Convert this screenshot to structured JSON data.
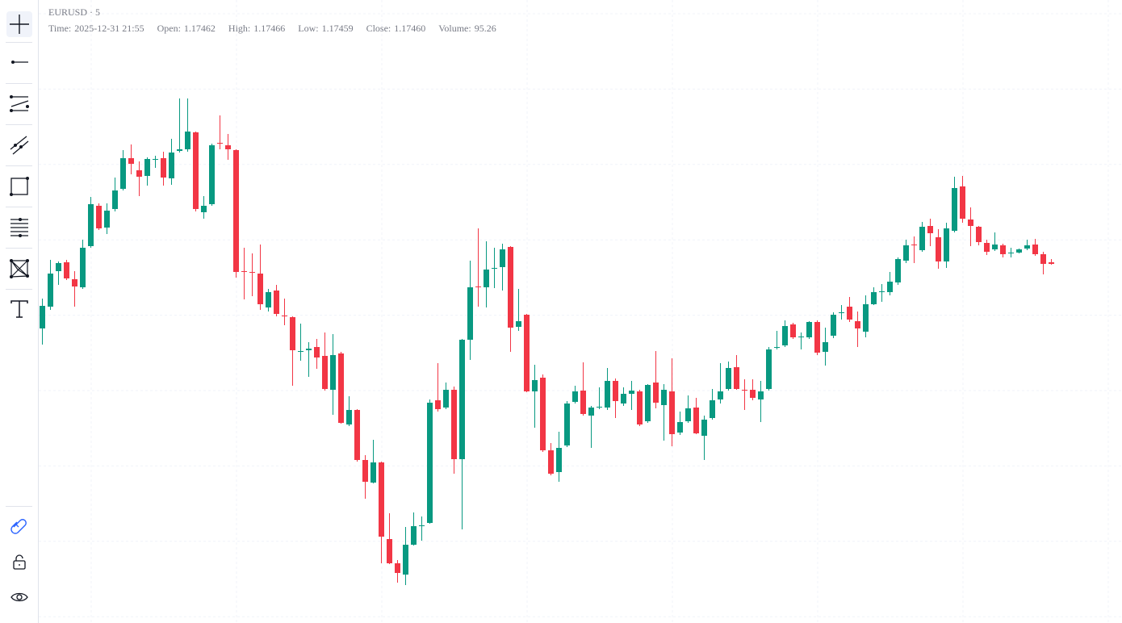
{
  "header": {
    "title": "EURUSD · 5",
    "legend": [
      {
        "label": "Time:",
        "value": "2025-12-31 21:55"
      },
      {
        "label": "Open:",
        "value": "1.17462"
      },
      {
        "label": "High:",
        "value": "1.17466"
      },
      {
        "label": "Low:",
        "value": "1.17459"
      },
      {
        "label": "Close:",
        "value": "1.17460"
      },
      {
        "label": "Volume:",
        "value": "95.26"
      }
    ]
  },
  "chart_data": {
    "type": "candlestick",
    "up_color": "#089981",
    "down_color": "#f23645",
    "grid": true,
    "ohlc": [
      [
        1.1738,
        1.17417,
        1.1736,
        1.17408
      ],
      [
        1.17407,
        1.17465,
        1.17403,
        1.17448
      ],
      [
        1.17451,
        1.17463,
        1.17434,
        1.17461
      ],
      [
        1.17462,
        1.17465,
        1.1744,
        1.17442
      ],
      [
        1.17441,
        1.17451,
        1.17407,
        1.17432
      ],
      [
        1.17431,
        1.1749,
        1.17429,
        1.1748
      ],
      [
        1.17482,
        1.17543,
        1.1748,
        1.17534
      ],
      [
        1.17532,
        1.17535,
        1.17502,
        1.17504
      ],
      [
        1.17505,
        1.17535,
        1.17497,
        1.17526
      ],
      [
        1.17528,
        1.17567,
        1.17525,
        1.17551
      ],
      [
        1.17553,
        1.17601,
        1.17551,
        1.17591
      ],
      [
        1.17591,
        1.17608,
        1.17571,
        1.17584
      ],
      [
        1.17576,
        1.17587,
        1.17544,
        1.17568
      ],
      [
        1.17569,
        1.17592,
        1.17557,
        1.1759
      ],
      [
        1.17589,
        1.17594,
        1.17579,
        1.1759
      ],
      [
        1.17591,
        1.17599,
        1.17557,
        1.17567
      ],
      [
        1.17566,
        1.17615,
        1.17558,
        1.17598
      ],
      [
        1.176,
        1.17665,
        1.17598,
        1.17602
      ],
      [
        1.17602,
        1.17665,
        1.17599,
        1.17624
      ],
      [
        1.17623,
        1.17624,
        1.17525,
        1.17528
      ],
      [
        1.17524,
        1.17544,
        1.17516,
        1.17532
      ],
      [
        1.17534,
        1.17609,
        1.17532,
        1.17607
      ],
      [
        1.1761,
        1.17644,
        1.17602,
        1.17609
      ],
      [
        1.17607,
        1.17621,
        1.17589,
        1.17602
      ],
      [
        1.17601,
        1.17602,
        1.17443,
        1.1745
      ],
      [
        1.17451,
        1.1748,
        1.17416,
        1.1745
      ],
      [
        1.1745,
        1.17473,
        1.1742,
        1.17449
      ],
      [
        1.17448,
        1.17484,
        1.17403,
        1.1741
      ],
      [
        1.17406,
        1.17429,
        1.17401,
        1.17425
      ],
      [
        1.17427,
        1.17434,
        1.17395,
        1.17398
      ],
      [
        1.17396,
        1.17417,
        1.17384,
        1.17395
      ],
      [
        1.17394,
        1.17395,
        1.17309,
        1.17353
      ],
      [
        1.17352,
        1.17386,
        1.1734,
        1.17352
      ],
      [
        1.17353,
        1.17363,
        1.1732,
        1.17355
      ],
      [
        1.17357,
        1.17367,
        1.1733,
        1.17344
      ],
      [
        1.17346,
        1.17375,
        1.17303,
        1.17305
      ],
      [
        1.17304,
        1.17373,
        1.17273,
        1.17347
      ],
      [
        1.17349,
        1.17351,
        1.17262,
        1.17263
      ],
      [
        1.17261,
        1.17296,
        1.17259,
        1.17279
      ],
      [
        1.17279,
        1.1728,
        1.17215,
        1.17217
      ],
      [
        1.17217,
        1.17223,
        1.17169,
        1.1719
      ],
      [
        1.17189,
        1.17242,
        1.17188,
        1.17214
      ],
      [
        1.17214,
        1.17215,
        1.17089,
        1.17122
      ],
      [
        1.17119,
        1.17151,
        1.17088,
        1.17089
      ],
      [
        1.17089,
        1.17093,
        1.17065,
        1.17077
      ],
      [
        1.17075,
        1.17134,
        1.17062,
        1.17112
      ],
      [
        1.17112,
        1.17152,
        1.17111,
        1.17135
      ],
      [
        1.17135,
        1.17147,
        1.17117,
        1.17136
      ],
      [
        1.17139,
        1.17292,
        1.17138,
        1.17288
      ],
      [
        1.17291,
        1.17337,
        1.17277,
        1.1728
      ],
      [
        1.17282,
        1.17313,
        1.1728,
        1.17304
      ],
      [
        1.17304,
        1.17308,
        1.172,
        1.17218
      ],
      [
        1.17218,
        1.17367,
        1.17131,
        1.17366
      ],
      [
        1.17366,
        1.17464,
        1.17341,
        1.17431
      ],
      [
        1.17432,
        1.17504,
        1.17407,
        1.17431
      ],
      [
        1.17431,
        1.17488,
        1.17406,
        1.17453
      ],
      [
        1.17454,
        1.1748,
        1.1743,
        1.17455
      ],
      [
        1.17456,
        1.17485,
        1.17427,
        1.17478
      ],
      [
        1.17481,
        1.17482,
        1.17351,
        1.17381
      ],
      [
        1.17382,
        1.17429,
        1.17377,
        1.17389
      ],
      [
        1.17397,
        1.17398,
        1.17301,
        1.17302
      ],
      [
        1.17302,
        1.17335,
        1.17257,
        1.17316
      ],
      [
        1.17319,
        1.17323,
        1.17227,
        1.17229
      ],
      [
        1.17229,
        1.17238,
        1.17198,
        1.172
      ],
      [
        1.17202,
        1.17252,
        1.1719,
        1.17232
      ],
      [
        1.17235,
        1.1729,
        1.17233,
        1.17287
      ],
      [
        1.17289,
        1.17309,
        1.17287,
        1.17302
      ],
      [
        1.17303,
        1.17338,
        1.17272,
        1.17274
      ],
      [
        1.17272,
        1.17284,
        1.17232,
        1.17282
      ],
      [
        1.17282,
        1.17307,
        1.1728,
        1.17283
      ],
      [
        1.17282,
        1.17331,
        1.17279,
        1.17315
      ],
      [
        1.17315,
        1.17318,
        1.17269,
        1.1729
      ],
      [
        1.17287,
        1.17307,
        1.17284,
        1.17299
      ],
      [
        1.17299,
        1.17315,
        1.17279,
        1.17303
      ],
      [
        1.17302,
        1.17304,
        1.17259,
        1.17261
      ],
      [
        1.17265,
        1.17311,
        1.17263,
        1.1731
      ],
      [
        1.17313,
        1.17352,
        1.17281,
        1.17288
      ],
      [
        1.17285,
        1.17311,
        1.17241,
        1.17304
      ],
      [
        1.17302,
        1.17343,
        1.17234,
        1.17249
      ],
      [
        1.17251,
        1.17277,
        1.17248,
        1.17264
      ],
      [
        1.17265,
        1.17297,
        1.17263,
        1.17281
      ],
      [
        1.17282,
        1.17294,
        1.17249,
        1.1725
      ],
      [
        1.17247,
        1.17272,
        1.17217,
        1.17267
      ],
      [
        1.17269,
        1.17305,
        1.17267,
        1.17291
      ],
      [
        1.17292,
        1.17337,
        1.17287,
        1.17302
      ],
      [
        1.17305,
        1.17339,
        1.17303,
        1.17331
      ],
      [
        1.17332,
        1.17347,
        1.17304,
        1.17305
      ],
      [
        1.17304,
        1.17317,
        1.17279,
        1.17303
      ],
      [
        1.17304,
        1.17317,
        1.17291,
        1.17294
      ],
      [
        1.17292,
        1.17315,
        1.17264,
        1.17302
      ],
      [
        1.17305,
        1.17357,
        1.17303,
        1.17354
      ],
      [
        1.17356,
        1.17377,
        1.17354,
        1.17357
      ],
      [
        1.17359,
        1.1739,
        1.17357,
        1.17383
      ],
      [
        1.17385,
        1.17387,
        1.17367,
        1.17369
      ],
      [
        1.17369,
        1.17375,
        1.17354,
        1.1737
      ],
      [
        1.17369,
        1.17389,
        1.17367,
        1.17388
      ],
      [
        1.17388,
        1.1739,
        1.17347,
        1.1735
      ],
      [
        1.17351,
        1.17381,
        1.17334,
        1.17363
      ],
      [
        1.17371,
        1.174,
        1.17368,
        1.17397
      ],
      [
        1.17399,
        1.17409,
        1.17391,
        1.174
      ],
      [
        1.17407,
        1.17419,
        1.17388,
        1.17391
      ],
      [
        1.17389,
        1.17401,
        1.17357,
        1.1738
      ],
      [
        1.17376,
        1.17421,
        1.17369,
        1.1741
      ],
      [
        1.1741,
        1.17431,
        1.17409,
        1.17425
      ],
      [
        1.17425,
        1.17435,
        1.17413,
        1.17426
      ],
      [
        1.17425,
        1.1745,
        1.17421,
        1.17438
      ],
      [
        1.17437,
        1.17468,
        1.17434,
        1.17466
      ],
      [
        1.17464,
        1.1749,
        1.17461,
        1.17483
      ],
      [
        1.17484,
        1.17494,
        1.17461,
        1.17483
      ],
      [
        1.17477,
        1.17512,
        1.17475,
        1.17506
      ],
      [
        1.17507,
        1.17516,
        1.17482,
        1.17498
      ],
      [
        1.17493,
        1.17503,
        1.17454,
        1.17463
      ],
      [
        1.17463,
        1.17511,
        1.17455,
        1.17504
      ],
      [
        1.17501,
        1.17568,
        1.17499,
        1.17554
      ],
      [
        1.17556,
        1.17569,
        1.17511,
        1.17516
      ],
      [
        1.17515,
        1.1753,
        1.17482,
        1.17507
      ],
      [
        1.17506,
        1.17507,
        1.17483,
        1.17487
      ],
      [
        1.17486,
        1.1749,
        1.17471,
        1.17475
      ],
      [
        1.17478,
        1.17499,
        1.17476,
        1.17484
      ],
      [
        1.17483,
        1.17485,
        1.17468,
        1.17472
      ],
      [
        1.17474,
        1.1748,
        1.17468,
        1.17474
      ],
      [
        1.17474,
        1.17479,
        1.17473,
        1.17478
      ],
      [
        1.17479,
        1.1749,
        1.17477,
        1.17483
      ],
      [
        1.17484,
        1.17491,
        1.1747,
        1.17472
      ],
      [
        1.17472,
        1.17475,
        1.17447,
        1.1746
      ],
      [
        1.17462,
        1.17466,
        1.17459,
        1.1746
      ]
    ]
  }
}
